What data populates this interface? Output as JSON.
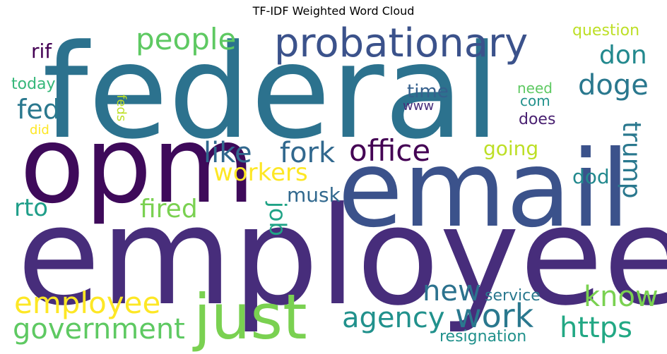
{
  "chart_data": {
    "type": "wordcloud",
    "title": "TF-IDF Weighted Word Cloud",
    "words": [
      {
        "text": "employees",
        "weight": 1.0,
        "color": "#472d7b"
      },
      {
        "text": "federal",
        "weight": 0.98,
        "color": "#2c728e"
      },
      {
        "text": "email",
        "weight": 0.82,
        "color": "#3b528b"
      },
      {
        "text": "opm",
        "weight": 0.8,
        "color": "#3e0a5a"
      },
      {
        "text": "just",
        "weight": 0.46,
        "color": "#7ad151"
      },
      {
        "text": "probationary",
        "weight": 0.34,
        "color": "#3b528b"
      },
      {
        "text": "government",
        "weight": 0.25,
        "color": "#5ec962"
      },
      {
        "text": "employee",
        "weight": 0.25,
        "color": "#fde725"
      },
      {
        "text": "work",
        "weight": 0.25,
        "color": "#2a788e"
      },
      {
        "text": "office",
        "weight": 0.23,
        "color": "#440154"
      },
      {
        "text": "like",
        "weight": 0.22,
        "color": "#31688e"
      },
      {
        "text": "fork",
        "weight": 0.22,
        "color": "#31688e"
      },
      {
        "text": "agency",
        "weight": 0.22,
        "color": "#21918c"
      },
      {
        "text": "https",
        "weight": 0.22,
        "color": "#22a884"
      },
      {
        "text": "people",
        "weight": 0.22,
        "color": "#5ec962"
      },
      {
        "text": "know",
        "weight": 0.22,
        "color": "#7ad151"
      },
      {
        "text": "workers",
        "weight": 0.21,
        "color": "#fde725"
      },
      {
        "text": "doge",
        "weight": 0.21,
        "color": "#2a788e"
      },
      {
        "text": "new",
        "weight": 0.21,
        "color": "#2c728e"
      },
      {
        "text": "fired",
        "weight": 0.21,
        "color": "#7ad151"
      },
      {
        "text": "trump",
        "weight": 0.2,
        "color": "#2a788e"
      },
      {
        "text": "don",
        "weight": 0.19,
        "color": "#23898e"
      },
      {
        "text": "fed",
        "weight": 0.19,
        "color": "#2a788e"
      },
      {
        "text": "rto",
        "weight": 0.18,
        "color": "#1f9e89"
      },
      {
        "text": "job",
        "weight": 0.17,
        "color": "#20a386"
      },
      {
        "text": "dod",
        "weight": 0.15,
        "color": "#23898e"
      },
      {
        "text": "going",
        "weight": 0.14,
        "color": "#bddf26"
      },
      {
        "text": "musk",
        "weight": 0.13,
        "color": "#31688e"
      },
      {
        "text": "time",
        "weight": 0.13,
        "color": "#35608d"
      },
      {
        "text": "rif",
        "weight": 0.13,
        "color": "#440154"
      },
      {
        "text": "resignation",
        "weight": 0.12,
        "color": "#21918c"
      },
      {
        "text": "service",
        "weight": 0.12,
        "color": "#2a788e"
      },
      {
        "text": "question",
        "weight": 0.11,
        "color": "#bddf26"
      },
      {
        "text": "today",
        "weight": 0.11,
        "color": "#35b779"
      },
      {
        "text": "need",
        "weight": 0.1,
        "color": "#5ec962"
      },
      {
        "text": "does",
        "weight": 0.1,
        "color": "#481f70"
      },
      {
        "text": "com",
        "weight": 0.1,
        "color": "#21918c"
      },
      {
        "text": "www",
        "weight": 0.09,
        "color": "#472d7b"
      },
      {
        "text": "did",
        "weight": 0.09,
        "color": "#fde725"
      },
      {
        "text": "feds",
        "weight": 0.08,
        "color": "#bddf26"
      }
    ]
  }
}
